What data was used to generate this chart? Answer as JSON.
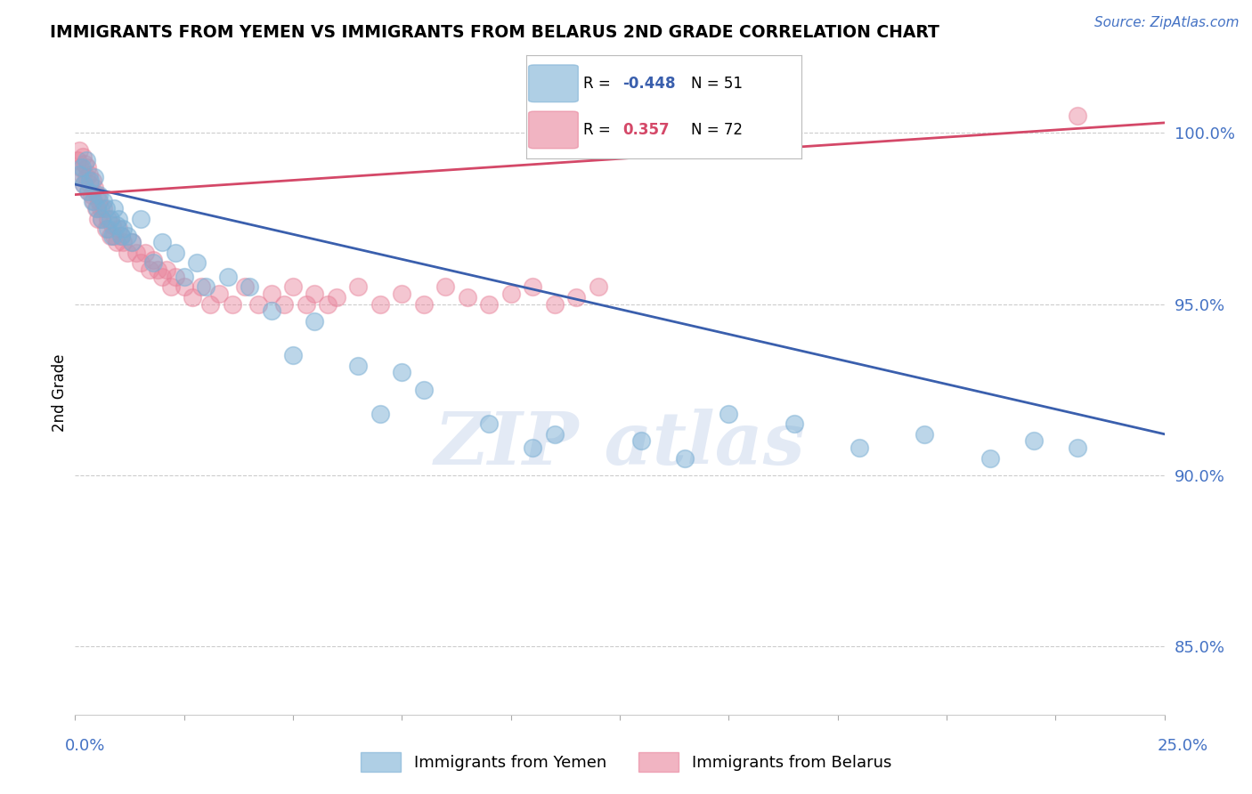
{
  "title": "IMMIGRANTS FROM YEMEN VS IMMIGRANTS FROM BELARUS 2ND GRADE CORRELATION CHART",
  "source": "Source: ZipAtlas.com",
  "ylabel": "2nd Grade",
  "xmin": 0.0,
  "xmax": 25.0,
  "ymin": 83.0,
  "ymax": 101.8,
  "yticks": [
    85.0,
    90.0,
    95.0,
    100.0
  ],
  "ytick_labels": [
    "85.0%",
    "90.0%",
    "95.0%",
    "100.0%"
  ],
  "legend_r_blue": "-0.448",
  "legend_n_blue": "51",
  "legend_r_pink": "0.357",
  "legend_n_pink": "72",
  "legend_label_blue": "Immigrants from Yemen",
  "legend_label_pink": "Immigrants from Belarus",
  "blue_color": "#7bafd4",
  "pink_color": "#e8829a",
  "line_blue": "#3a5fad",
  "line_pink": "#d44868",
  "blue_scatter_x": [
    0.1,
    0.15,
    0.2,
    0.25,
    0.3,
    0.35,
    0.4,
    0.45,
    0.5,
    0.55,
    0.6,
    0.65,
    0.7,
    0.75,
    0.8,
    0.85,
    0.9,
    0.95,
    1.0,
    1.05,
    1.1,
    1.2,
    1.3,
    1.5,
    1.8,
    2.0,
    2.3,
    2.5,
    2.8,
    3.0,
    3.5,
    4.0,
    4.5,
    5.0,
    5.5,
    6.5,
    7.0,
    7.5,
    8.0,
    9.5,
    10.5,
    11.0,
    13.0,
    14.0,
    15.0,
    16.5,
    18.0,
    19.5,
    21.0,
    22.0,
    23.0
  ],
  "blue_scatter_y": [
    98.8,
    99.0,
    98.5,
    99.2,
    98.3,
    98.6,
    98.0,
    98.7,
    97.8,
    98.2,
    97.5,
    98.0,
    97.8,
    97.2,
    97.5,
    97.0,
    97.8,
    97.3,
    97.5,
    97.0,
    97.2,
    97.0,
    96.8,
    97.5,
    96.2,
    96.8,
    96.5,
    95.8,
    96.2,
    95.5,
    95.8,
    95.5,
    94.8,
    93.5,
    94.5,
    93.2,
    91.8,
    93.0,
    92.5,
    91.5,
    90.8,
    91.2,
    91.0,
    90.5,
    91.8,
    91.5,
    90.8,
    91.2,
    90.5,
    91.0,
    90.8
  ],
  "pink_scatter_x": [
    0.05,
    0.1,
    0.12,
    0.15,
    0.18,
    0.2,
    0.22,
    0.25,
    0.28,
    0.3,
    0.32,
    0.35,
    0.38,
    0.4,
    0.42,
    0.45,
    0.48,
    0.5,
    0.52,
    0.55,
    0.58,
    0.6,
    0.65,
    0.7,
    0.75,
    0.8,
    0.85,
    0.9,
    0.95,
    1.0,
    1.05,
    1.1,
    1.2,
    1.3,
    1.4,
    1.5,
    1.6,
    1.7,
    1.8,
    1.9,
    2.0,
    2.1,
    2.2,
    2.3,
    2.5,
    2.7,
    2.9,
    3.1,
    3.3,
    3.6,
    3.9,
    4.2,
    4.5,
    4.8,
    5.0,
    5.3,
    5.5,
    5.8,
    6.0,
    6.5,
    7.0,
    7.5,
    8.0,
    8.5,
    9.0,
    9.5,
    10.0,
    10.5,
    11.0,
    11.5,
    12.0,
    23.0
  ],
  "pink_scatter_y": [
    99.2,
    99.5,
    99.0,
    98.8,
    99.3,
    98.5,
    99.1,
    98.7,
    99.0,
    98.3,
    98.8,
    98.5,
    98.2,
    98.6,
    98.0,
    98.4,
    97.8,
    98.2,
    97.5,
    98.0,
    97.8,
    97.5,
    97.8,
    97.2,
    97.5,
    97.0,
    97.3,
    97.0,
    96.8,
    97.2,
    97.0,
    96.8,
    96.5,
    96.8,
    96.5,
    96.2,
    96.5,
    96.0,
    96.3,
    96.0,
    95.8,
    96.0,
    95.5,
    95.8,
    95.5,
    95.2,
    95.5,
    95.0,
    95.3,
    95.0,
    95.5,
    95.0,
    95.3,
    95.0,
    95.5,
    95.0,
    95.3,
    95.0,
    95.2,
    95.5,
    95.0,
    95.3,
    95.0,
    95.5,
    95.2,
    95.0,
    95.3,
    95.5,
    95.0,
    95.2,
    95.5,
    100.5
  ],
  "blue_line_x0": 0.0,
  "blue_line_y0": 98.5,
  "blue_line_x1": 25.0,
  "blue_line_y1": 91.2,
  "pink_line_x0": 0.0,
  "pink_line_y0": 98.2,
  "pink_line_x1": 25.0,
  "pink_line_y1": 100.3
}
